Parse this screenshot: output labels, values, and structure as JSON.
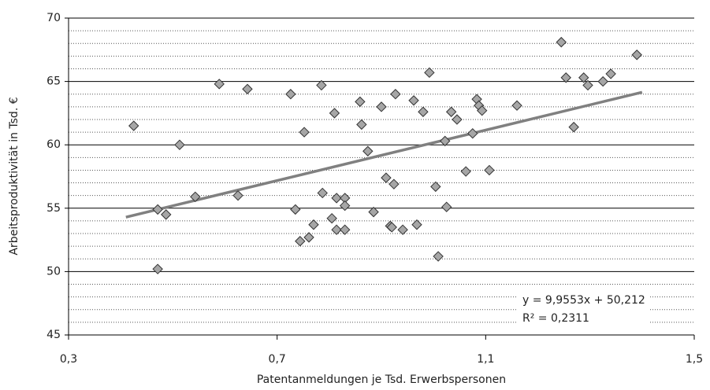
{
  "chart_data": {
    "type": "scatter",
    "x_label": "Patentanmeldungen je Tsd. Erwerbspersonen",
    "y_label": "Arbeitsproduktivität in Tsd. €",
    "x": [
      0.425,
      0.471,
      0.471,
      0.487,
      0.513,
      0.543,
      0.589,
      0.625,
      0.643,
      0.726,
      0.735,
      0.744,
      0.752,
      0.761,
      0.77,
      0.785,
      0.787,
      0.805,
      0.81,
      0.814,
      0.814,
      0.83,
      0.83,
      0.83,
      0.859,
      0.862,
      0.874,
      0.885,
      0.9,
      0.909,
      0.917,
      0.92,
      0.924,
      0.927,
      0.941,
      0.962,
      0.968,
      0.98,
      0.992,
      1.004,
      1.009,
      1.022,
      1.025,
      1.034,
      1.045,
      1.062,
      1.075,
      1.083,
      1.087,
      1.093,
      1.107,
      1.16,
      1.245,
      1.254,
      1.269,
      1.288,
      1.296,
      1.325,
      1.34,
      1.39
    ],
    "values": [
      61.5,
      54.9,
      50.2,
      54.5,
      60.0,
      55.9,
      64.8,
      56.0,
      64.4,
      64.0,
      54.9,
      52.4,
      61.0,
      52.7,
      53.7,
      64.7,
      56.2,
      54.2,
      62.5,
      55.8,
      53.3,
      55.8,
      55.2,
      53.3,
      63.4,
      61.6,
      59.5,
      54.7,
      63.0,
      57.4,
      53.6,
      53.5,
      56.9,
      64.0,
      53.3,
      63.5,
      53.7,
      62.6,
      65.7,
      56.7,
      51.2,
      60.3,
      55.1,
      62.6,
      62.0,
      57.9,
      60.9,
      63.6,
      63.1,
      62.7,
      58.0,
      63.1,
      68.1,
      65.3,
      61.4,
      65.3,
      64.7,
      65.0,
      65.6,
      67.1
    ],
    "color": "#a6a6a6",
    "xlim": [
      0.3,
      1.5
    ],
    "xticks": [
      {
        "value": 0.3,
        "label": "0,3"
      },
      {
        "value": 0.7,
        "label": "0,7"
      },
      {
        "value": 1.1,
        "label": "1,1"
      },
      {
        "value": 1.5,
        "label": "1,5"
      }
    ],
    "ylim": [
      45,
      70
    ],
    "yticks": [
      45,
      50,
      55,
      60,
      65,
      70
    ],
    "grid": true,
    "minor_grid_step": 1,
    "trendline": {
      "slope": 9.9553,
      "intercept": 50.212,
      "xrange": [
        0.41,
        1.4
      ],
      "color": "#808080",
      "equation": "y = 9,9553x + 50,212",
      "r_squared": "R² = 0,2311"
    }
  }
}
